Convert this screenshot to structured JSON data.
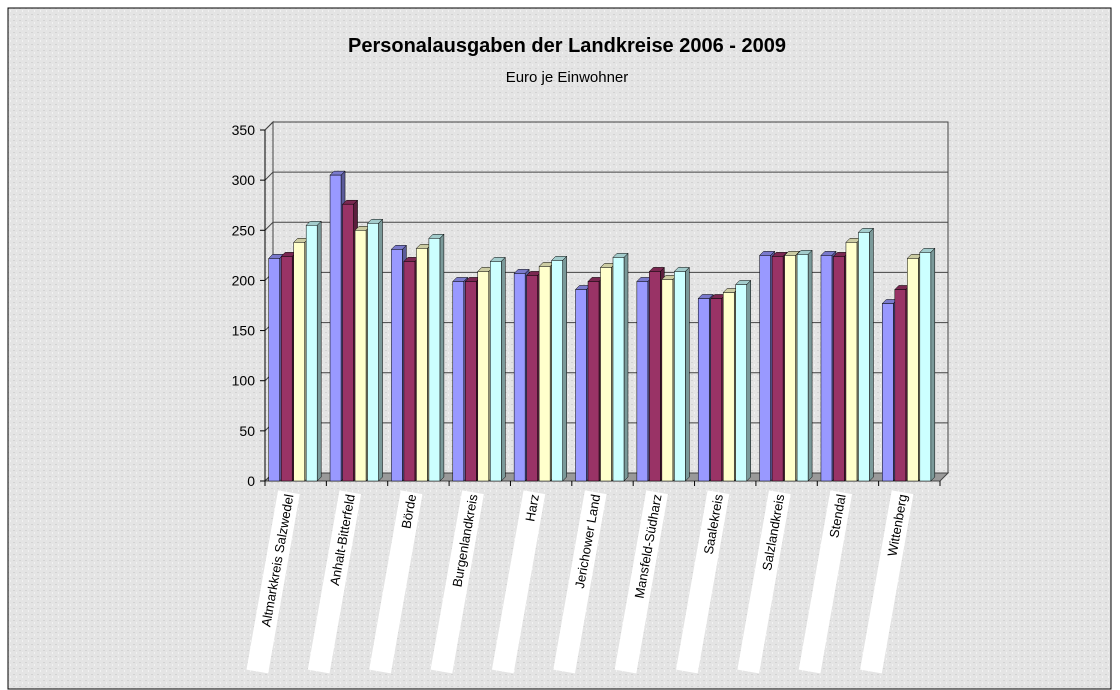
{
  "chart_data": {
    "type": "bar3d",
    "title": "Personalausgaben der Landkreise 2006 - 2009",
    "subtitle": "Euro je Einwohner",
    "categories": [
      "Altmarkkreis Salzwedel",
      "Anhalt-Bitterfeld",
      "Börde",
      "Burgenlandkreis",
      "Harz",
      "Jerichower Land",
      "Mansfeld-Südharz",
      "Saalekreis",
      "Salzlandkreis",
      "Stendal",
      "Wittenberg"
    ],
    "series": [
      {
        "color": "#9999ff",
        "values": [
          222,
          305,
          231,
          199,
          207,
          191,
          199,
          182,
          225,
          225,
          177
        ]
      },
      {
        "color": "#993366",
        "values": [
          224,
          276,
          219,
          199,
          205,
          199,
          209,
          182,
          224,
          224,
          191
        ]
      },
      {
        "color": "#ffffcc",
        "values": [
          238,
          250,
          232,
          209,
          214,
          213,
          201,
          188,
          225,
          238,
          222
        ]
      },
      {
        "color": "#ccffff",
        "values": [
          255,
          257,
          242,
          219,
          220,
          223,
          209,
          196,
          226,
          248,
          228
        ]
      }
    ],
    "ylim": [
      0,
      350
    ],
    "yticks": [
      0,
      50,
      100,
      150,
      200,
      250,
      300,
      350
    ],
    "grid": true
  }
}
